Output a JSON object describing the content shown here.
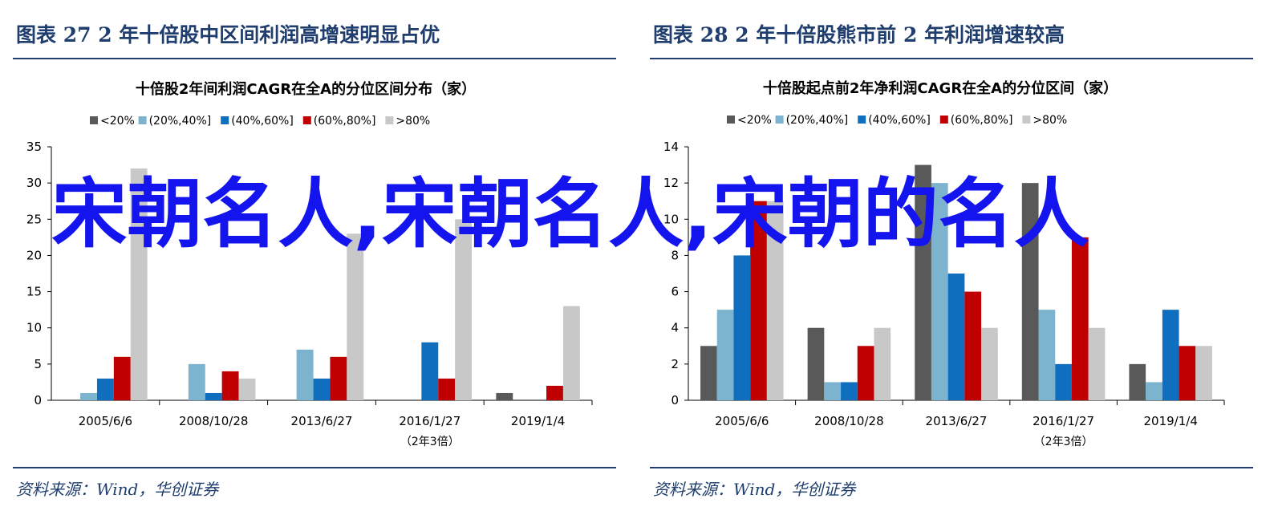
{
  "panels": [
    {
      "figure_title": "图表 27    2 年十倍股中区间利润高增速明显占优",
      "source": "资料来源：Wind，华创证券"
    },
    {
      "figure_title": "图表 28    2 年十倍股熊市前 2 年利润增速较高",
      "source": "资料来源：Wind，华创证券"
    }
  ],
  "overlay_text": "宋朝名人,宋朝名人,宋朝的名人",
  "chart_data": [
    {
      "type": "bar",
      "title": "十倍股2年间利润CAGR在全A的分位区间分布（家）",
      "categories": [
        "2005/6/6",
        "2008/10/28",
        "2013/6/27",
        "2016/1/27",
        "2019/1/4"
      ],
      "category_sublabels": [
        "",
        "",
        "",
        "（2年3倍）",
        ""
      ],
      "series": [
        {
          "name": "<20%",
          "color": "#595959",
          "values": [
            0,
            0,
            0,
            0,
            1
          ]
        },
        {
          "name": "(20%,40%]",
          "color": "#7cb4d0",
          "values": [
            1,
            5,
            7,
            0,
            0
          ]
        },
        {
          "name": "(40%,60%]",
          "color": "#0f6fbe",
          "values": [
            3,
            1,
            3,
            8,
            0
          ]
        },
        {
          "name": "(60%,80%]",
          "color": "#c00000",
          "values": [
            6,
            4,
            6,
            3,
            2
          ]
        },
        {
          "name": ">80%",
          "color": "#c8c8c8",
          "values": [
            32,
            3,
            23,
            25,
            13
          ]
        }
      ],
      "ylim": [
        0,
        35
      ],
      "yticks": [
        0,
        5,
        10,
        15,
        20,
        25,
        30,
        35
      ],
      "legend": "top",
      "grid": false
    },
    {
      "type": "bar",
      "title": "十倍股起点前2年净利润CAGR在全A的分位区间（家）",
      "categories": [
        "2005/6/6",
        "2008/10/28",
        "2013/6/27",
        "2016/1/27",
        "2019/1/4"
      ],
      "category_sublabels": [
        "",
        "",
        "",
        "（2年3倍）",
        ""
      ],
      "series": [
        {
          "name": "<20%",
          "color": "#595959",
          "values": [
            3,
            4,
            13,
            12,
            2
          ]
        },
        {
          "name": "(20%,40%]",
          "color": "#7cb4d0",
          "values": [
            5,
            1,
            12,
            5,
            1
          ]
        },
        {
          "name": "(40%,60%]",
          "color": "#0f6fbe",
          "values": [
            8,
            1,
            7,
            2,
            5
          ]
        },
        {
          "name": "(60%,80%]",
          "color": "#c00000",
          "values": [
            11,
            3,
            6,
            9,
            3
          ]
        },
        {
          "name": ">80%",
          "color": "#c8c8c8",
          "values": [
            11,
            4,
            4,
            4,
            3
          ]
        }
      ],
      "ylim": [
        0,
        14
      ],
      "yticks": [
        0,
        2,
        4,
        6,
        8,
        10,
        12,
        14
      ],
      "legend": "top",
      "grid": false
    }
  ]
}
